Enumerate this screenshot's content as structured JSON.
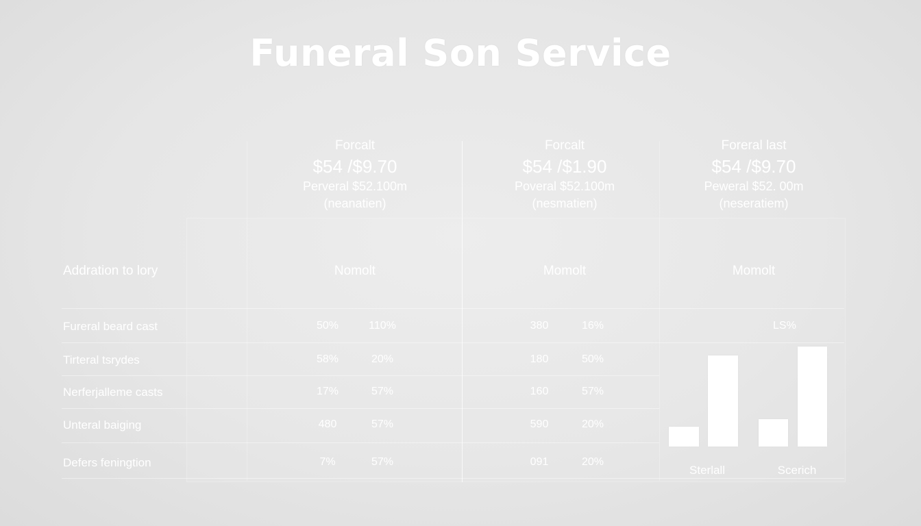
{
  "title": "Funeral Son Service",
  "columns": [
    {
      "label": "Forcalt",
      "price": "$54 /$9.70",
      "sub": "Perveral $52.100m",
      "note": "(neanatien)"
    },
    {
      "label": "Forcalt",
      "price": "$54 /$1.90",
      "sub": "Poveral $52.100m",
      "note": "(nesmatien)"
    },
    {
      "label": "Foreral last",
      "price": "$54 /$9.70",
      "sub": "Peweral $52. 00m",
      "note": "(neseratiem)"
    }
  ],
  "section_label": "Addration to lory",
  "metric_heads": [
    "Nomolt",
    "Momolt",
    "Momolt"
  ],
  "rows": [
    {
      "label": "Fureral beard cast",
      "a1": "50%",
      "a2": "110%",
      "b1": "380",
      "b2": "16%"
    },
    {
      "label": "Tirteral tsrydes",
      "a1": "58%",
      "a2": "20%",
      "b1": "180",
      "b2": "50%"
    },
    {
      "label": "Nerferjalleme casts",
      "a1": "17%",
      "a2": "57%",
      "b1": "160",
      "b2": "57%"
    },
    {
      "label": "Unteral baiging",
      "a1": "480",
      "a2": "57%",
      "b1": "590",
      "b2": "20%"
    },
    {
      "label": "Defers feningtion",
      "a1": "7%",
      "a2": "57%",
      "b1": "091",
      "b2": "20%"
    }
  ],
  "chart_data": {
    "type": "bar",
    "annotation": "LS%",
    "categories": [
      "Sterlall",
      "Sterlall",
      "Scerich",
      "Scerich"
    ],
    "groups": [
      "Sterlall",
      "Scerich"
    ],
    "values": [
      22,
      100,
      30,
      110
    ],
    "ylim": [
      0,
      110
    ]
  }
}
